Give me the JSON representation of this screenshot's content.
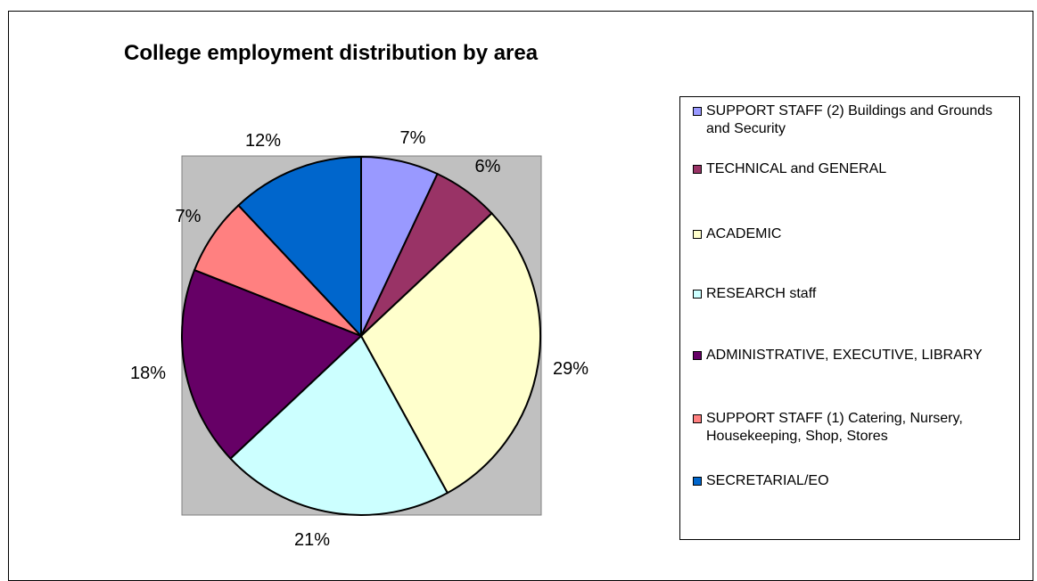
{
  "chart_data": {
    "type": "pie",
    "title": "College employment distribution by area",
    "plot_background": "#c0c0c0",
    "slices": [
      {
        "name": "SUPPORT STAFF (2) Buildings and Grounds and Security",
        "value": 7,
        "label": "7%",
        "color": "#9999ff"
      },
      {
        "name": "TECHNICAL and GENERAL",
        "value": 6,
        "label": "6%",
        "color": "#993366"
      },
      {
        "name": "ACADEMIC",
        "value": 29,
        "label": "29%",
        "color": "#ffffcc"
      },
      {
        "name": "RESEARCH staff",
        "value": 21,
        "label": "21%",
        "color": "#ccffff"
      },
      {
        "name": "ADMINISTRATIVE, EXECUTIVE, LIBRARY",
        "value": 18,
        "label": "18%",
        "color": "#660066"
      },
      {
        "name": "SUPPORT STAFF (1) Catering, Nursery, Housekeeping, Shop, Stores",
        "value": 7,
        "label": "7%",
        "color": "#ff8080"
      },
      {
        "name": "SECRETARIAL/EO",
        "value": 12,
        "label": "12%",
        "color": "#0066cc"
      }
    ],
    "legend_position": "right"
  }
}
